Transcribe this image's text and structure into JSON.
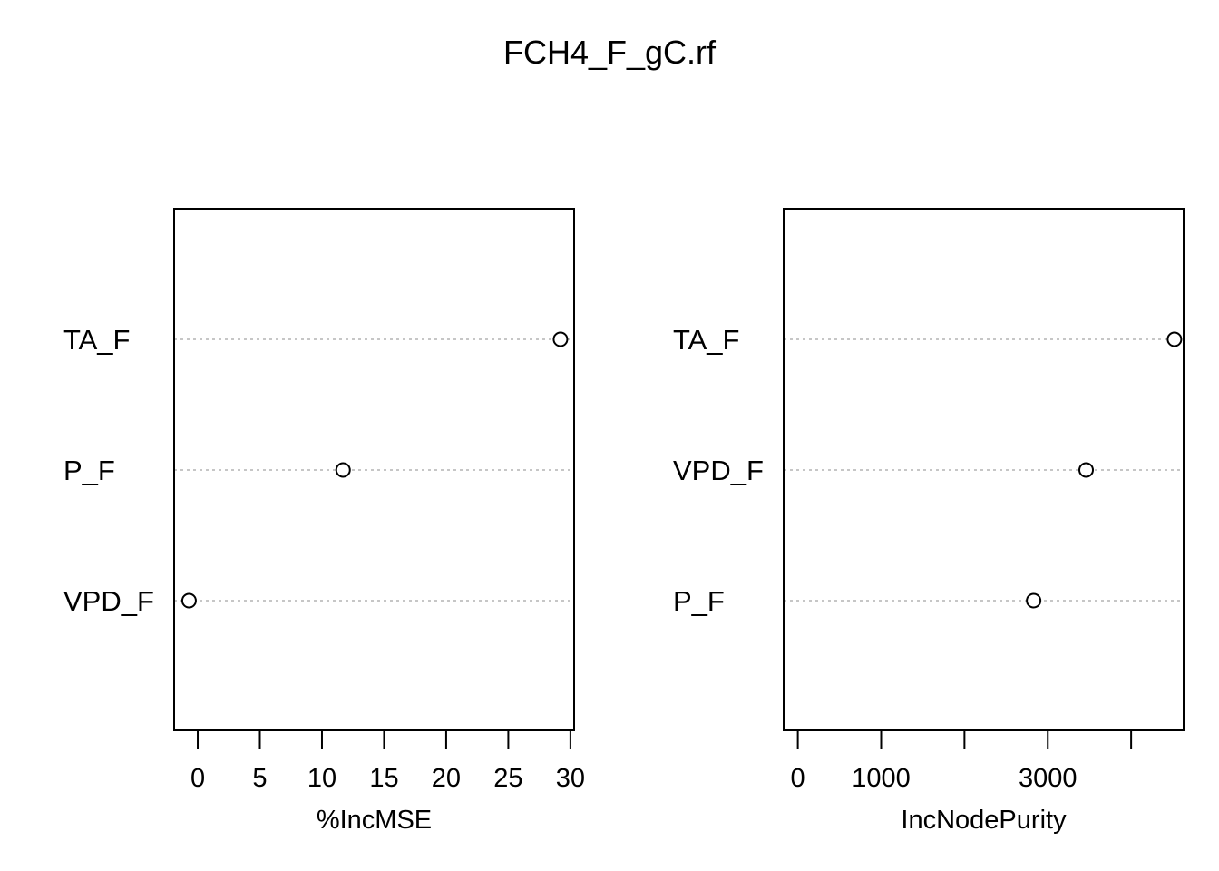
{
  "figure": {
    "title": "FCH4_F_gC.rf"
  },
  "chart_data": [
    {
      "type": "scatter",
      "subtype": "dotchart",
      "xlabel": "%IncMSE",
      "ylabel": "",
      "categories": [
        "TA_F",
        "P_F",
        "VPD_F"
      ],
      "values": [
        29.2,
        11.7,
        -0.7
      ],
      "xlim": [
        -1.9,
        30.3
      ],
      "xticks": [
        0,
        5,
        10,
        15,
        20,
        25,
        30
      ],
      "xtick_labels": [
        "0",
        "5",
        "10",
        "15",
        "20",
        "25",
        "30"
      ],
      "grid": "dotted horizontal lines",
      "marker": "open circle",
      "colors": {
        "marker": "#000000",
        "gridline": "#b3b3b3",
        "frame": "#000000"
      }
    },
    {
      "type": "scatter",
      "subtype": "dotchart",
      "xlabel": "IncNodePurity",
      "ylabel": "",
      "categories": [
        "TA_F",
        "VPD_F",
        "P_F"
      ],
      "values": [
        4520,
        3460,
        2830
      ],
      "xlim": [
        -170,
        4630
      ],
      "xticks": [
        0,
        1000,
        2000,
        3000,
        4000
      ],
      "xtick_labels": [
        "0",
        "1000",
        "",
        "3000",
        ""
      ],
      "grid": "dotted horizontal lines",
      "marker": "open circle",
      "colors": {
        "marker": "#000000",
        "gridline": "#b3b3b3",
        "frame": "#000000"
      }
    }
  ]
}
